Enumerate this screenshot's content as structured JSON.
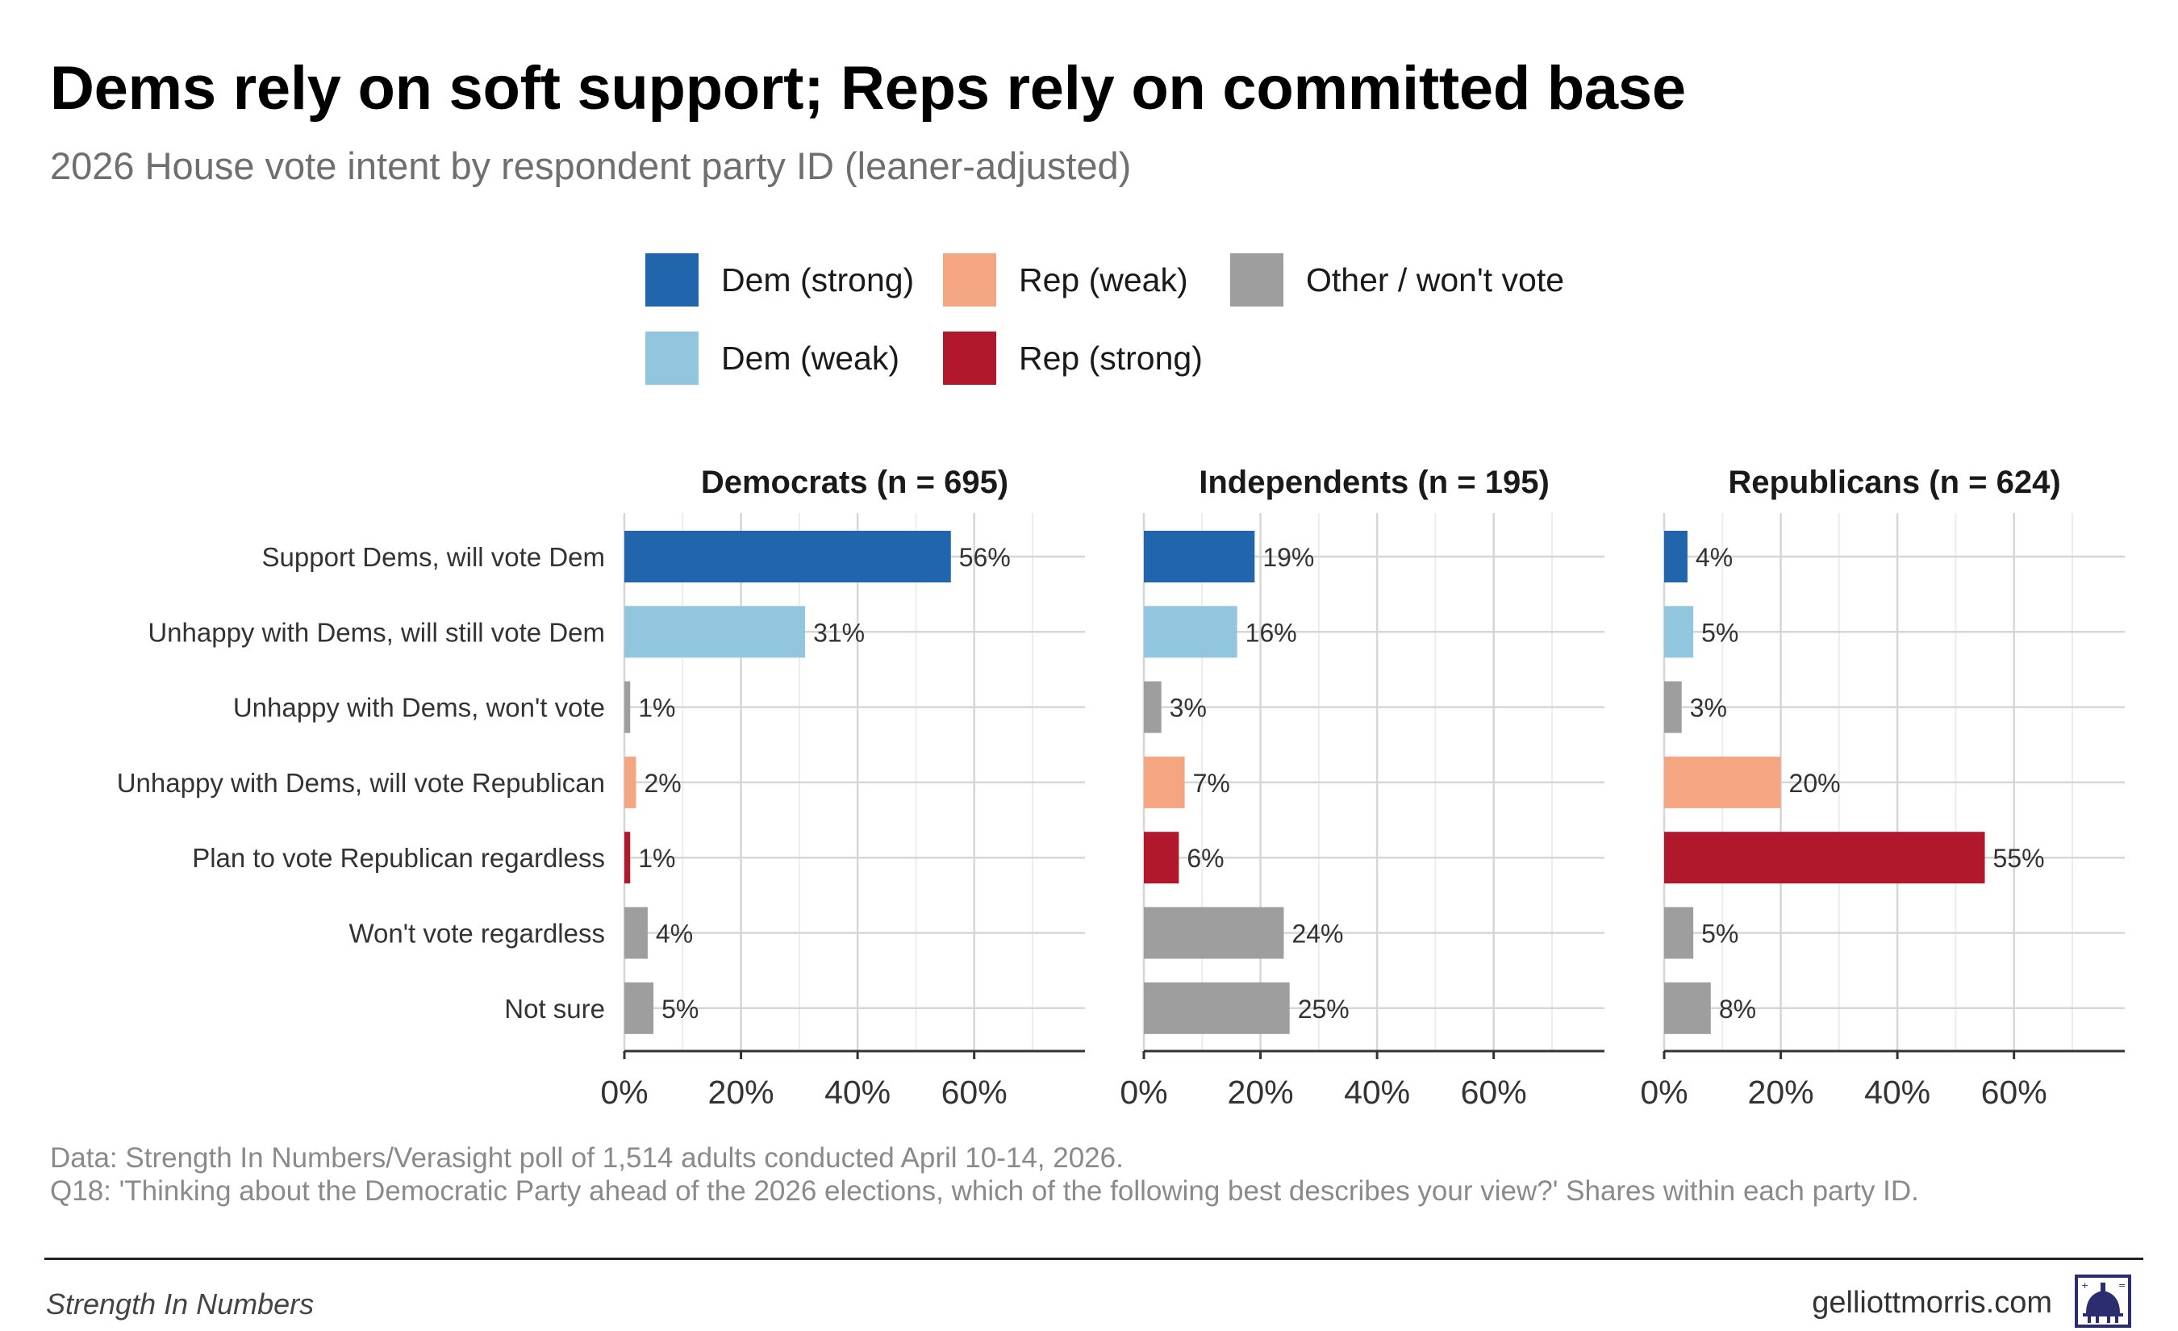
{
  "title": "Dems rely on soft support; Reps rely on committed base",
  "subtitle": "2026 House vote intent by respondent party ID (leaner-adjusted)",
  "legend": [
    {
      "label": "Dem (strong)",
      "color": "#2166ac"
    },
    {
      "label": "Rep (weak)",
      "color": "#f4a582"
    },
    {
      "label": "Other / won't vote",
      "color": "#9e9e9e"
    },
    {
      "label": "Dem (weak)",
      "color": "#92c5de"
    },
    {
      "label": "Rep (strong)",
      "color": "#b2182b"
    }
  ],
  "chart_data": {
    "type": "bar",
    "orientation": "horizontal",
    "facets": [
      "Democrats (n = 695)",
      "Independents (n = 195)",
      "Republicans (n = 624)"
    ],
    "categories": [
      "Support Dems, will vote Dem",
      "Unhappy with Dems, will still vote Dem",
      "Unhappy with Dems, won't vote",
      "Unhappy with Dems, will vote Republican",
      "Plan to vote Republican regardless",
      "Won't vote regardless",
      "Not sure"
    ],
    "category_colors": [
      "#2166ac",
      "#92c5de",
      "#9e9e9e",
      "#f4a582",
      "#b2182b",
      "#9e9e9e",
      "#9e9e9e"
    ],
    "values": [
      [
        56,
        31,
        1,
        2,
        1,
        4,
        5
      ],
      [
        19,
        16,
        3,
        7,
        6,
        24,
        25
      ],
      [
        4,
        5,
        3,
        20,
        55,
        5,
        8
      ]
    ],
    "value_labels": [
      [
        "56%",
        "31%",
        "1%",
        "2%",
        "1%",
        "4%",
        "5%"
      ],
      [
        "19%",
        "16%",
        "3%",
        "7%",
        "6%",
        "24%",
        "25%"
      ],
      [
        "4%",
        "5%",
        "3%",
        "20%",
        "55%",
        "5%",
        "8%"
      ]
    ],
    "xlim": [
      0,
      79
    ],
    "x_ticks": [
      0,
      20,
      40,
      60
    ],
    "x_tick_labels": [
      "0%",
      "20%",
      "40%",
      "60%"
    ],
    "grid": true
  },
  "footnotes": [
    "Data: Strength In Numbers/Verasight poll of 1,514 adults conducted April 10-14, 2026.",
    "Q18: 'Thinking about the Democratic Party ahead of the 2026 elections, which of the following best describes your view?' Shares within each party ID."
  ],
  "brand": "Strength In Numbers",
  "site": "gelliottmorris.com",
  "logo_icon": "capitol-dome-logo-icon"
}
